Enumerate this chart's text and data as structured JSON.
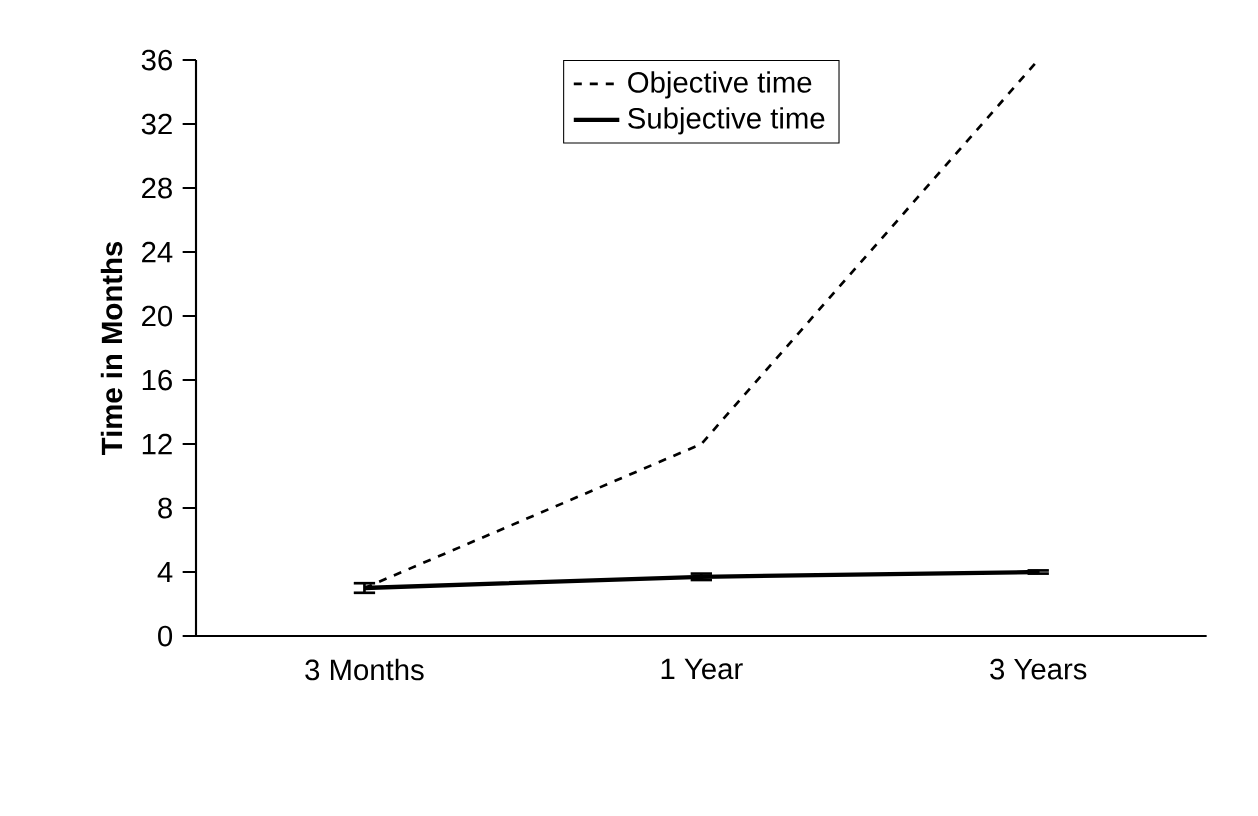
{
  "chart_data": {
    "type": "line",
    "ylabel": "Time in Months",
    "categories": [
      "3 Months",
      "1 Year",
      "3 Years"
    ],
    "series": [
      {
        "name": "Objective time",
        "color": "#000000",
        "line_style": "dashed",
        "values": [
          3,
          12,
          36
        ]
      },
      {
        "name": "Subjective time",
        "color": "#000000",
        "line_style": "solid",
        "values": [
          3.0,
          3.7,
          4.0
        ],
        "errors": [
          0.3,
          0.2,
          0.1
        ]
      }
    ],
    "ylim": [
      0,
      36
    ],
    "yticks": [
      0,
      4,
      8,
      12,
      16,
      20,
      24,
      28,
      32,
      36
    ],
    "legend": "top",
    "marker": "none",
    "grid": false
  }
}
